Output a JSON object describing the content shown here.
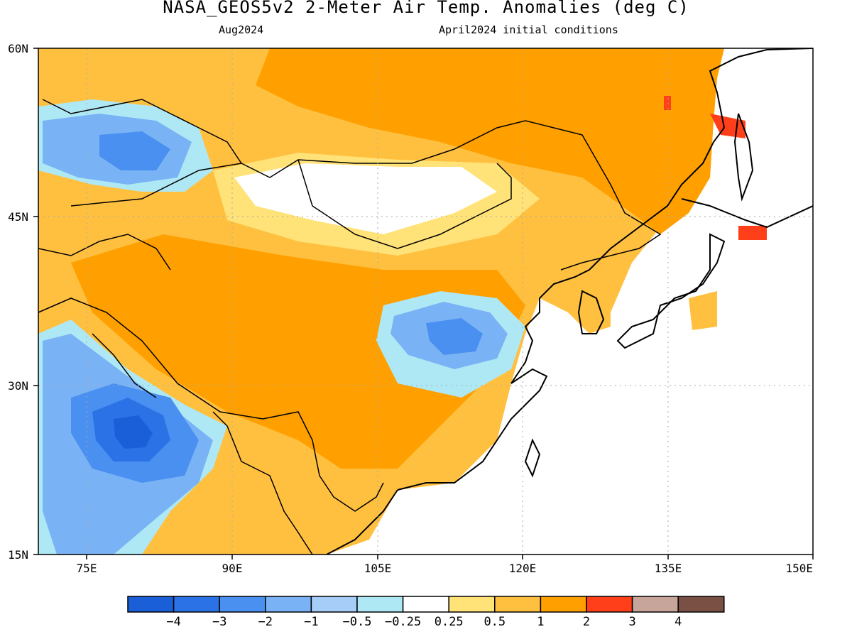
{
  "title": "NASA_GEOS5v2 2-Meter Air Temp. Anomalies (deg C)",
  "subtitle_left": "Aug2024",
  "subtitle_right": "April2024 initial conditions",
  "lat_labels": [
    "60N",
    "45N",
    "30N",
    "15N"
  ],
  "lon_labels": [
    "75E",
    "90E",
    "105E",
    "120E",
    "135E",
    "150E"
  ],
  "colorbar": {
    "labels": [
      "−4",
      "−3",
      "−2",
      "−1",
      "−0.5",
      "−0.25",
      "0.25",
      "0.5",
      "1",
      "2",
      "3",
      "4"
    ],
    "colors": [
      "#1a5fd8",
      "#2a72e6",
      "#4a90f0",
      "#7ab3f5",
      "#a6cdf8",
      "#aee8f5",
      "#ffffff",
      "#ffe278",
      "#ffc040",
      "#ffa000",
      "#ff3f1a",
      "#c8a59a",
      "#7a5045"
    ]
  },
  "chart_data": {
    "type": "heatmap",
    "title": "NASA_GEOS5v2 2-Meter Air Temp. Anomalies (deg C)",
    "subtitle": "Aug2024 — April2024 initial conditions",
    "variable": "2-Meter Air Temp. Anomalies",
    "units": "deg C",
    "lon_range": [
      70,
      150
    ],
    "lat_range": [
      15,
      60
    ],
    "lon_ticks": [
      75,
      90,
      105,
      120,
      135,
      150
    ],
    "lat_ticks": [
      15,
      30,
      45,
      60
    ],
    "color_levels": [
      -4,
      -3,
      -2,
      -1,
      -0.5,
      -0.25,
      0.25,
      0.5,
      1,
      2,
      3,
      4
    ],
    "grid": true,
    "regions": [
      {
        "lon": [
          70,
          83
        ],
        "lat": [
          47,
          56
        ],
        "anomaly_range": [
          -2,
          -0.5
        ]
      },
      {
        "lon": [
          72,
          87
        ],
        "lat": [
          17,
          32
        ],
        "anomaly_range": [
          -4,
          -0.5
        ]
      },
      {
        "lon": [
          107,
          120
        ],
        "lat": [
          30,
          37
        ],
        "anomaly_range": [
          -2,
          -0.5
        ]
      },
      {
        "lon": [
          85,
          120
        ],
        "lat": [
          20,
          45
        ],
        "anomaly_range": [
          1,
          2
        ]
      },
      {
        "lon": [
          110,
          140
        ],
        "lat": [
          45,
          60
        ],
        "anomaly_range": [
          1,
          2
        ]
      },
      {
        "lon": [
          140,
          145
        ],
        "lat": [
          44,
          55
        ],
        "anomaly_range": [
          2,
          3
        ]
      }
    ]
  }
}
